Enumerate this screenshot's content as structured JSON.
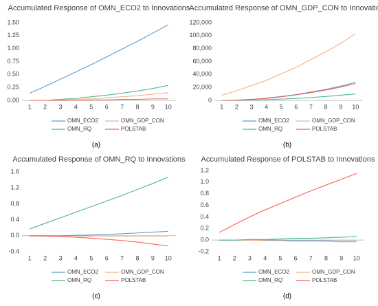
{
  "chart_data": [
    {
      "type": "line",
      "title": "Accumulated Response of OMN_ECO2 to Innovations",
      "caption": "(a)",
      "categories": [
        "1",
        "2",
        "3",
        "4",
        "5",
        "6",
        "7",
        "8",
        "9",
        "10"
      ],
      "ylim": [
        0,
        1.5
      ],
      "yticks": [
        {
          "value": 0,
          "label": "0.00"
        },
        {
          "value": 0.25,
          "label": "0.25"
        },
        {
          "value": 0.5,
          "label": "0.50"
        },
        {
          "value": 0.75,
          "label": "0.75"
        },
        {
          "value": 1,
          "label": "1.00"
        },
        {
          "value": 1.25,
          "label": "1.25"
        },
        {
          "value": 1.5,
          "label": "1.50"
        }
      ],
      "series": [
        {
          "name": "OMN_ECO2",
          "color": "#5b9bd5",
          "values": [
            0.14,
            0.27,
            0.41,
            0.55,
            0.69,
            0.84,
            0.99,
            1.14,
            1.3,
            1.46
          ]
        },
        {
          "name": "OMN_GDP_CON",
          "color": "#f4b183",
          "values": [
            0,
            0,
            0.01,
            0.02,
            0.03,
            0.05,
            0.07,
            0.09,
            0.12,
            0.15
          ]
        },
        {
          "name": "OMN_RQ",
          "color": "#4cb88a",
          "values": [
            0,
            0,
            0.02,
            0.04,
            0.07,
            0.1,
            0.14,
            0.18,
            0.23,
            0.29
          ]
        },
        {
          "name": "POLSTAB",
          "color": "#f0625a",
          "values": [
            0,
            0,
            0,
            0,
            0.01,
            0.01,
            0.02,
            0.02,
            0.03,
            0.03
          ]
        }
      ]
    },
    {
      "type": "line",
      "title": "Accumulated Response of OMN_GDP_CON to Innovations",
      "caption": "(b)",
      "categories": [
        "1",
        "2",
        "3",
        "4",
        "5",
        "6",
        "7",
        "8",
        "9",
        "10"
      ],
      "ylim": [
        0,
        120000
      ],
      "yticks": [
        0,
        {
          "value": 20000,
          "label": "20,000"
        },
        {
          "value": 40000,
          "label": "40,000"
        },
        {
          "value": 60000,
          "label": "60,000"
        },
        {
          "value": 80000,
          "label": "80,000"
        },
        {
          "value": 100000,
          "label": "100,000"
        },
        {
          "value": 120000,
          "label": "120,000"
        }
      ],
      "series": [
        {
          "name": "OMN_ECO2",
          "color": "#5b9bd5",
          "values": [
            0,
            500,
            1500,
            3500,
            6000,
            9000,
            13000,
            17000,
            22000,
            28000
          ]
        },
        {
          "name": "OMN_GDP_CON",
          "color": "#f4b183",
          "values": [
            8000,
            15000,
            23000,
            31000,
            41000,
            51000,
            63000,
            75000,
            88000,
            103000
          ]
        },
        {
          "name": "OMN_RQ",
          "color": "#4cb88a",
          "values": [
            0,
            0,
            500,
            1000,
            2000,
            3000,
            4500,
            6000,
            8000,
            10000
          ]
        },
        {
          "name": "POLSTAB",
          "color": "#f0625a",
          "values": [
            0,
            500,
            1500,
            3000,
            5500,
            8500,
            12000,
            16000,
            20500,
            26000
          ]
        }
      ]
    },
    {
      "type": "line",
      "title": "Accumulated Response of OMN_RQ to Innovations",
      "caption": "(c)",
      "categories": [
        "1",
        "2",
        "3",
        "4",
        "5",
        "6",
        "7",
        "8",
        "9",
        "10"
      ],
      "ylim": [
        -0.4,
        1.6
      ],
      "yticks": [
        -0.4,
        {
          "value": 0,
          "label": "0.0"
        },
        0.4,
        0.8,
        1.2,
        1.6
      ],
      "series": [
        {
          "name": "OMN_ECO2",
          "color": "#5b9bd5",
          "values": [
            0,
            0,
            0,
            0.01,
            0.02,
            0.03,
            0.05,
            0.07,
            0.09,
            0.11
          ]
        },
        {
          "name": "OMN_GDP_CON",
          "color": "#f4b183",
          "values": [
            -0.01,
            -0.01,
            -0.01,
            -0.01,
            -0.01,
            -0.01,
            -0.01,
            -0.01,
            -0.01,
            -0.01
          ]
        },
        {
          "name": "OMN_RQ",
          "color": "#4cb88a",
          "values": [
            0.17,
            0.31,
            0.45,
            0.59,
            0.73,
            0.87,
            1.01,
            1.16,
            1.31,
            1.47
          ]
        },
        {
          "name": "POLSTAB",
          "color": "#f0625a",
          "values": [
            0,
            -0.01,
            -0.02,
            -0.04,
            -0.06,
            -0.09,
            -0.12,
            -0.16,
            -0.21,
            -0.26
          ]
        }
      ]
    },
    {
      "type": "line",
      "title": "Accumulated Response of POLSTAB to Innovations",
      "caption": "(d)",
      "categories": [
        "1",
        "2",
        "3",
        "4",
        "5",
        "6",
        "7",
        "8",
        "9",
        "10"
      ],
      "ylim": [
        -0.2,
        1.2
      ],
      "yticks": [
        -0.2,
        {
          "value": 0,
          "label": "0.0"
        },
        0.2,
        0.4,
        0.6,
        0.8,
        {
          "value": 1,
          "label": "1.0"
        },
        1.2
      ],
      "series": [
        {
          "name": "OMN_ECO2",
          "color": "#5b9bd5",
          "values": [
            0,
            0,
            0,
            0,
            0,
            -0.01,
            -0.01,
            -0.01,
            -0.02,
            -0.02
          ]
        },
        {
          "name": "OMN_GDP_CON",
          "color": "#f4b183",
          "values": [
            0,
            0,
            0,
            -0.01,
            -0.01,
            -0.02,
            -0.02,
            -0.02,
            -0.03,
            -0.03
          ]
        },
        {
          "name": "OMN_RQ",
          "color": "#4cb88a",
          "values": [
            0,
            0,
            0.01,
            0.01,
            0.02,
            0.03,
            0.03,
            0.04,
            0.05,
            0.06
          ]
        },
        {
          "name": "POLSTAB",
          "color": "#f0625a",
          "values": [
            0.13,
            0.27,
            0.4,
            0.52,
            0.63,
            0.74,
            0.85,
            0.95,
            1.05,
            1.15
          ]
        }
      ]
    }
  ]
}
